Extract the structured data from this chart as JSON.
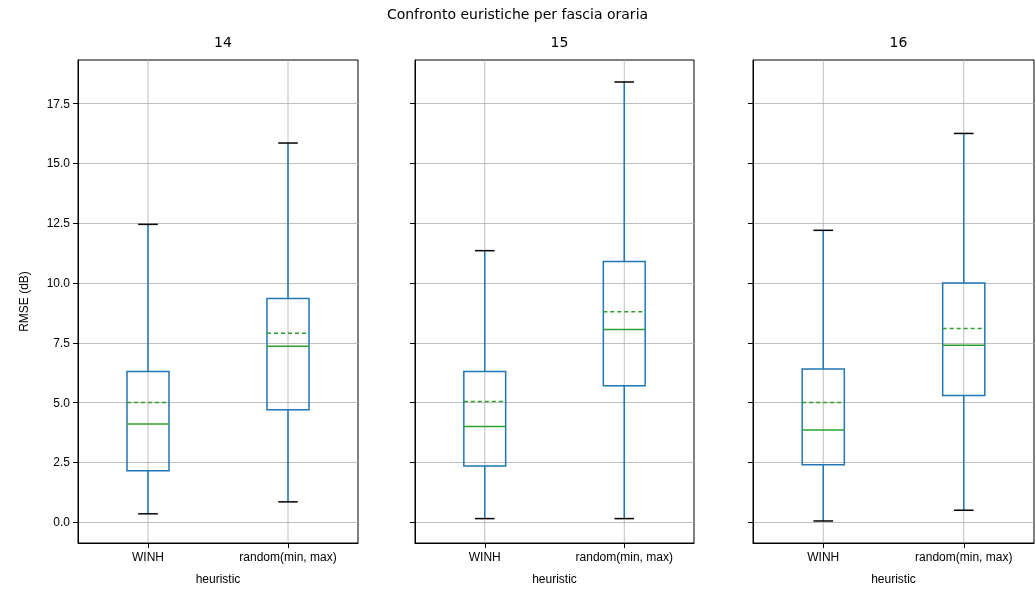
{
  "chart_data": [
    {
      "type": "box",
      "title": "14",
      "annotations": [
        "Confronto euristiche per fascia oraria"
      ],
      "xlabel": "heuristic",
      "ylabel": "RMSE (dB)",
      "categories": [
        "WINH",
        "random(min, max)"
      ],
      "ylim": [
        -0.87,
        19.32
      ],
      "yticks": [
        {
          "value": 0,
          "label": "0.0"
        },
        2.5,
        {
          "value": 5,
          "label": "5.0"
        },
        7.5,
        {
          "value": 10,
          "label": "10.0"
        },
        12.5,
        {
          "value": 15,
          "label": "15.0"
        },
        17.5
      ],
      "grid": true,
      "series": [
        {
          "color": "#1f77b4",
          "boxes": [
            {
              "low": 0.35,
              "q1": 2.15,
              "median": 4.1,
              "q3": 6.3,
              "high": 12.45,
              "mean": 5.0
            },
            {
              "low": 0.85,
              "q1": 4.7,
              "median": 7.35,
              "q3": 9.35,
              "high": 15.85,
              "mean": 7.9
            }
          ]
        }
      ]
    },
    {
      "type": "box",
      "title": "15",
      "xlabel": "heuristic",
      "categories": [
        "WINH",
        "random(min, max)"
      ],
      "ylim": [
        -0.87,
        19.32
      ],
      "yticks": [
        {
          "value": 0,
          "label": null
        },
        {
          "value": 2.5,
          "label": null
        },
        {
          "value": 5,
          "label": null
        },
        {
          "value": 7.5,
          "label": null
        },
        {
          "value": 10,
          "label": null
        },
        {
          "value": 12.5,
          "label": null
        },
        {
          "value": 15,
          "label": null
        },
        {
          "value": 17.5,
          "label": null
        }
      ],
      "grid": true,
      "tick_labels": "x",
      "series": [
        {
          "color": "#1f77b4",
          "boxes": [
            {
              "low": 0.15,
              "q1": 2.35,
              "median": 4.0,
              "q3": 6.3,
              "high": 11.35,
              "mean": 5.05
            },
            {
              "low": 0.15,
              "q1": 5.7,
              "median": 8.05,
              "q3": 10.9,
              "high": 18.4,
              "mean": 8.8
            }
          ]
        }
      ]
    },
    {
      "type": "box",
      "title": "16",
      "xlabel": "heuristic",
      "categories": [
        "WINH",
        "random(min, max)"
      ],
      "ylim": [
        -0.87,
        19.32
      ],
      "yticks": [
        {
          "value": 0,
          "label": null
        },
        {
          "value": 2.5,
          "label": null
        },
        {
          "value": 5,
          "label": null
        },
        {
          "value": 7.5,
          "label": null
        },
        {
          "value": 10,
          "label": null
        },
        {
          "value": 12.5,
          "label": null
        },
        {
          "value": 15,
          "label": null
        },
        {
          "value": 17.5,
          "label": null
        }
      ],
      "grid": true,
      "tick_labels": "x",
      "series": [
        {
          "color": "#1f77b4",
          "boxes": [
            {
              "low": 0.05,
              "q1": 2.4,
              "median": 3.85,
              "q3": 6.4,
              "high": 12.2,
              "mean": 5.0
            },
            {
              "low": 0.5,
              "q1": 5.3,
              "median": 7.4,
              "q3": 10.0,
              "high": 16.25,
              "mean": 8.1
            }
          ]
        }
      ]
    }
  ]
}
